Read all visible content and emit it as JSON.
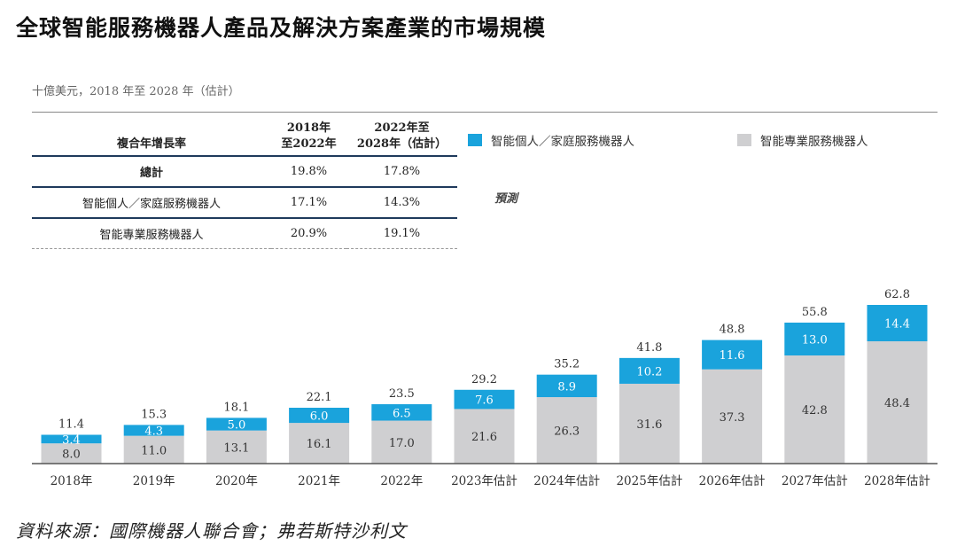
{
  "title": "全球智能服務機器人產品及解決方案產業的市場規模",
  "subtitle": "十億美元，2018 年至 2028 年（估計）",
  "cagr_table": {
    "header_label": "複合年增長率",
    "header_col1_line1": "2018年",
    "header_col1_line2": "至2022年",
    "header_col2_line1": "2022年至",
    "header_col2_line2": "2028年（估計）",
    "rows": [
      {
        "label": "總計",
        "a": "19.8%",
        "b": "17.8%"
      },
      {
        "label": "智能個人／家庭服務機器人",
        "a": "17.1%",
        "b": "14.3%"
      },
      {
        "label": "智能專業服務機器人",
        "a": "20.9%",
        "b": "19.1%"
      }
    ]
  },
  "legend": {
    "personal": "智能個人／家庭服務機器人",
    "professional": "智能專業服務機器人"
  },
  "forecast_label": "預測",
  "source": "資料來源：國際機器人聯合會；弗若斯特沙利文",
  "colors": {
    "personal": "#1aa3dc",
    "professional": "#cfcfd1",
    "rule": "#1f3a5c"
  },
  "chart_data": {
    "type": "bar",
    "stacked": true,
    "categories": [
      "2018年",
      "2019年",
      "2020年",
      "2021年",
      "2022年",
      "2023年估計",
      "2024年估計",
      "2025年估計",
      "2026年估計",
      "2027年估計",
      "2028年估計"
    ],
    "series": [
      {
        "name": "智能專業服務機器人",
        "values": [
          8.0,
          11.0,
          13.1,
          16.1,
          17.0,
          21.6,
          26.3,
          31.6,
          37.3,
          42.8,
          48.4
        ]
      },
      {
        "name": "智能個人／家庭服務機器人",
        "values": [
          3.4,
          4.3,
          5.0,
          6.0,
          6.5,
          7.6,
          8.9,
          10.2,
          11.6,
          13.0,
          14.4
        ]
      }
    ],
    "totals": [
      11.4,
      15.3,
      18.1,
      22.1,
      23.5,
      29.2,
      35.2,
      41.8,
      48.8,
      55.8,
      62.8
    ],
    "ylim": [
      0,
      62.8
    ]
  }
}
